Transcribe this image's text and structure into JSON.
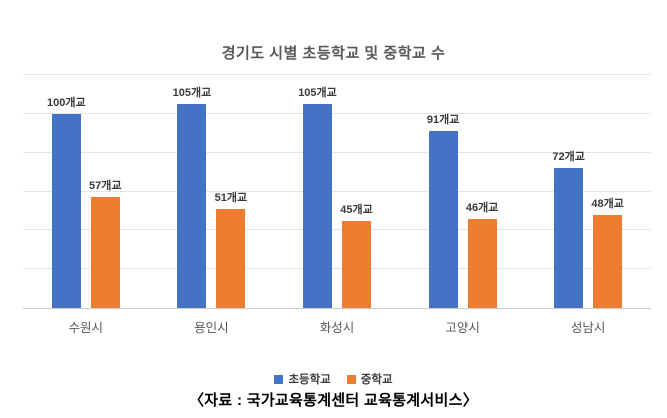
{
  "footer": "〈자료 : 국가교육통계센터 교육통계서비스〉",
  "colors": {
    "elementary": "#4472C4",
    "middle": "#ED7D31",
    "title_text": "#595959",
    "axis_text": "#595959",
    "data_label_text": "#3a3a3a",
    "gridline": "#e4e4e4",
    "baseline": "#c9c9c9"
  },
  "chart_data": {
    "type": "bar",
    "title": "경기도 시별 초등학교 및 중학교 수",
    "categories": [
      "수원시",
      "용인시",
      "화성시",
      "고양시",
      "성남시"
    ],
    "series": [
      {
        "key": "elementary",
        "name": "초등학교",
        "color": "#4472C4",
        "values": [
          100,
          105,
          105,
          91,
          72
        ],
        "labels": [
          "100개교",
          "105개교",
          "105개교",
          "91개교",
          "72개교"
        ]
      },
      {
        "key": "middle",
        "name": "중학교",
        "color": "#ED7D31",
        "values": [
          57,
          51,
          45,
          46,
          48
        ],
        "labels": [
          "57개교",
          "51개교",
          "45개교",
          "46개교",
          "48개교"
        ]
      }
    ],
    "xlabel": "",
    "ylabel": "",
    "ylim": [
      0,
      120
    ],
    "grid_step": 20,
    "grid": true,
    "y_axis_labels_visible": false,
    "legend_position": "bottom"
  }
}
